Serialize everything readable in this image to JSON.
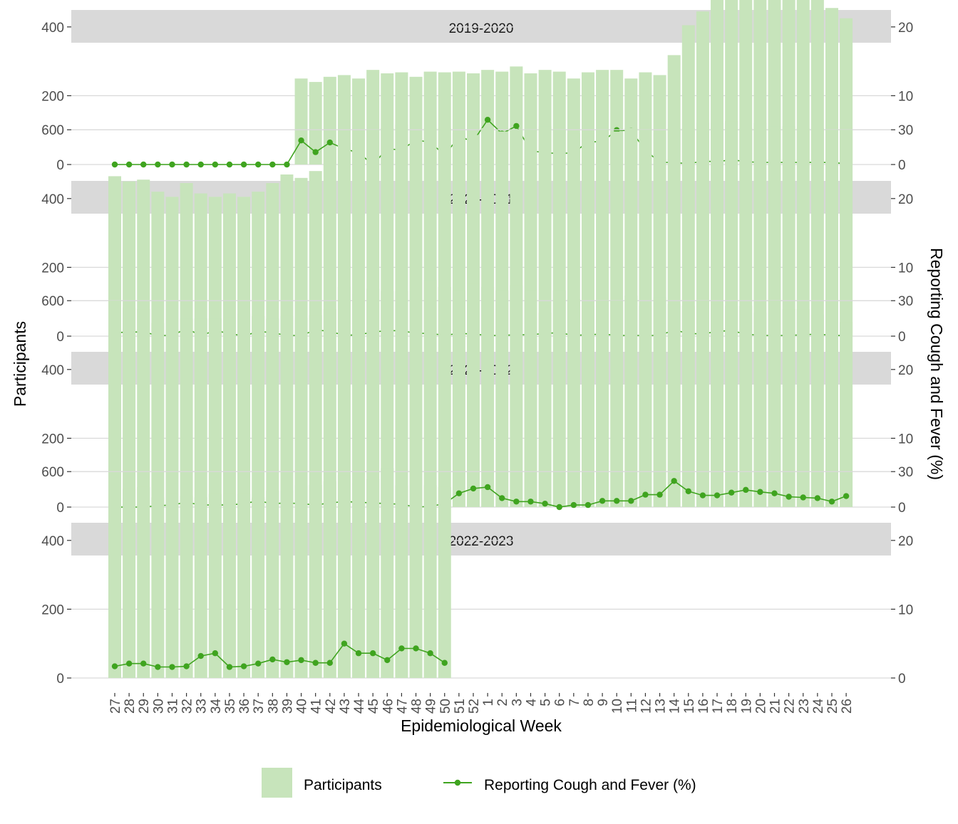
{
  "chart_data": {
    "type": "bar",
    "subtype": "faceted bar with line on secondary axis",
    "xlabel": "Epidemiological Week",
    "ylabel": "Participants",
    "ylabel_right": "Reporting Cough and Fever (%)",
    "ylim": [
      0,
      650
    ],
    "ylim_right": [
      0,
      32.5
    ],
    "yticks": [
      0,
      200,
      400,
      600
    ],
    "yticks_right": [
      0,
      10,
      20,
      30
    ],
    "grid": true,
    "legend_position": "bottom",
    "colors": {
      "bars": "#c7e4bb",
      "line": "#3fa41f",
      "strip_bg": "#d9d9d9",
      "grid": "#d9d9d9"
    },
    "legend": [
      {
        "label": "Participants",
        "kind": "bar"
      },
      {
        "label": "Reporting Cough and Fever (%)",
        "kind": "line"
      }
    ],
    "categories": [
      "27",
      "28",
      "29",
      "30",
      "31",
      "32",
      "33",
      "34",
      "35",
      "36",
      "37",
      "38",
      "39",
      "40",
      "41",
      "42",
      "43",
      "44",
      "45",
      "46",
      "47",
      "48",
      "49",
      "50",
      "51",
      "52",
      "1",
      "2",
      "3",
      "4",
      "5",
      "6",
      "7",
      "8",
      "9",
      "10",
      "11",
      "12",
      "13",
      "14",
      "15",
      "16",
      "17",
      "18",
      "19",
      "20",
      "21",
      "22",
      "23",
      "24",
      "25",
      "26"
    ],
    "facets": [
      {
        "label": "2019-2020",
        "participants": [
          null,
          null,
          null,
          null,
          null,
          null,
          null,
          null,
          null,
          null,
          null,
          null,
          null,
          250,
          240,
          255,
          260,
          250,
          275,
          265,
          268,
          255,
          270,
          268,
          270,
          265,
          275,
          270,
          285,
          265,
          275,
          270,
          250,
          268,
          275,
          275,
          250,
          268,
          260,
          318,
          405,
          445,
          485,
          485,
          505,
          505,
          512,
          500,
          495,
          490,
          455,
          425
        ],
        "cough_fever_pct": [
          0,
          0,
          0,
          0,
          0,
          0,
          0,
          0,
          0,
          0,
          0,
          0,
          0,
          3.5,
          1.8,
          3.2,
          2.3,
          1.7,
          0,
          2.3,
          2.1,
          3.6,
          3.2,
          1.4,
          4.0,
          3.4,
          6.5,
          4.5,
          5.6,
          2.0,
          1.7,
          1.6,
          1.7,
          3.3,
          3.3,
          5.0,
          4.9,
          2.1,
          0.3,
          0.3,
          0.1,
          0.5,
          0.4,
          0.7,
          0.4,
          0.3,
          0.3,
          0.3,
          0.3,
          0.3,
          0.3,
          0.1
        ]
      },
      {
        "label": "2020-2021",
        "participants": [
          465,
          450,
          455,
          420,
          405,
          445,
          415,
          405,
          415,
          405,
          420,
          445,
          470,
          460,
          480,
          545,
          560,
          590,
          600,
          605,
          615,
          580,
          605,
          605,
          590,
          585,
          605,
          595,
          600,
          600,
          610,
          600,
          590,
          590,
          600,
          595,
          605,
          600,
          590,
          605,
          605,
          620,
          620,
          625,
          605,
          620,
          610,
          610,
          605,
          605,
          600,
          600
        ],
        "cough_fever_pct": [
          0.5,
          0.6,
          0.6,
          0.1,
          0.1,
          1.1,
          0.1,
          0.8,
          0.4,
          0.0,
          0.7,
          0.5,
          0.1,
          0.1,
          0.9,
          0.7,
          0.1,
          0.2,
          0.6,
          0.8,
          0.8,
          0.4,
          0.4,
          0.1,
          0.4,
          0.3,
          0.1,
          0.1,
          0.2,
          0.2,
          0.4,
          0.5,
          0.1,
          0.2,
          0.3,
          0.1,
          0.1,
          0.1,
          0.1,
          0.9,
          0.4,
          0.3,
          0.7,
          0.8,
          0.3,
          0.1,
          0.1,
          0.1,
          0.2,
          0.3,
          0.1,
          0.1
        ]
      },
      {
        "label": "2021-2022",
        "participants": [
          600,
          580,
          575,
          535,
          550,
          548,
          548,
          548,
          552,
          562,
          555,
          548,
          555,
          550,
          558,
          575,
          640,
          620,
          635,
          628,
          628,
          655,
          660,
          640,
          630,
          650,
          640,
          630,
          645,
          630,
          565,
          630,
          605,
          585,
          600,
          600,
          615,
          585,
          610,
          590,
          585,
          600,
          590,
          585,
          585,
          565,
          600,
          575,
          575,
          560,
          585,
          538
        ],
        "cough_fever_pct": [
          0,
          0,
          0,
          0.2,
          0.3,
          0.7,
          0.3,
          0.3,
          0.3,
          0.5,
          0.9,
          0.5,
          0.6,
          0.5,
          0.3,
          0.6,
          0.8,
          0.7,
          0.6,
          0.5,
          0.4,
          0.0,
          0.1,
          0.5,
          2.0,
          2.7,
          2.9,
          1.3,
          0.8,
          0.8,
          0.5,
          0.0,
          0.3,
          0.3,
          0.9,
          0.9,
          0.9,
          1.8,
          1.8,
          3.8,
          2.3,
          1.7,
          1.7,
          2.1,
          2.5,
          2.2,
          2.0,
          1.5,
          1.4,
          1.3,
          0.8,
          1.6
        ]
      },
      {
        "label": "2022-2023",
        "participants": [
          560,
          550,
          555,
          525,
          535,
          530,
          525,
          535,
          535,
          535,
          525,
          545,
          545,
          560,
          562,
          572,
          590,
          568,
          578,
          610,
          560,
          605,
          560,
          555,
          null,
          null,
          null,
          null,
          null,
          null,
          null,
          null,
          null,
          null,
          null,
          null,
          null,
          null,
          null,
          null,
          null,
          null,
          null,
          null,
          null,
          null,
          null,
          null,
          null,
          null,
          null,
          null
        ],
        "cough_fever_pct": [
          1.7,
          2.1,
          2.1,
          1.6,
          1.6,
          1.7,
          3.2,
          3.6,
          1.6,
          1.7,
          2.1,
          2.7,
          2.3,
          2.6,
          2.2,
          2.2,
          5.0,
          3.6,
          3.6,
          2.6,
          4.3,
          4.3,
          3.6,
          2.2,
          null,
          null,
          null,
          null,
          null,
          null,
          null,
          null,
          null,
          null,
          null,
          null,
          null,
          null,
          null,
          null,
          null,
          null,
          null,
          null,
          null,
          null,
          null,
          null,
          null,
          null,
          null,
          null
        ]
      }
    ]
  }
}
